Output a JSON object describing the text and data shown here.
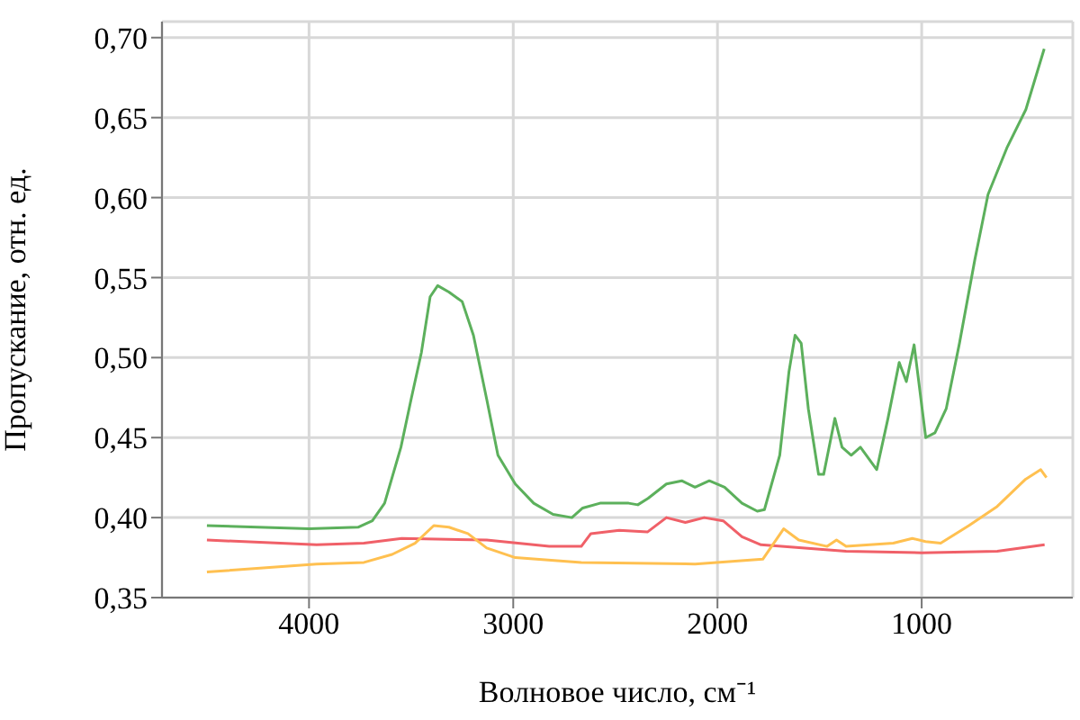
{
  "chart_data": {
    "type": "line",
    "xlabel": "Волновое число, см⁻¹",
    "ylabel": "Пропускание, отн. ед.",
    "xlim": [
      4720,
      260
    ],
    "ylim": [
      0.35,
      0.71
    ],
    "xticks": [
      4000,
      3000,
      2000,
      1000
    ],
    "yticks": [
      {
        "value": 0.35,
        "label": "0,35"
      },
      {
        "value": 0.4,
        "label": "0,40"
      },
      {
        "value": 0.45,
        "label": "0,45"
      },
      {
        "value": 0.5,
        "label": "0,50"
      },
      {
        "value": 0.55,
        "label": "0,55"
      },
      {
        "value": 0.6,
        "label": "0,60"
      },
      {
        "value": 0.65,
        "label": "0,65"
      },
      {
        "value": 0.7,
        "label": "0,70"
      }
    ],
    "grid": true,
    "marker": "none",
    "line_style": "solid",
    "series": [
      {
        "color": "#5cb05c",
        "x": [
          4500,
          4000,
          3760,
          3690,
          3630,
          3550,
          3500,
          3450,
          3407,
          3370,
          3315,
          3250,
          3195,
          3130,
          3075,
          2990,
          2900,
          2805,
          2713,
          2660,
          2575,
          2435,
          2390,
          2340,
          2250,
          2175,
          2110,
          2040,
          1965,
          1880,
          1805,
          1770,
          1695,
          1650,
          1620,
          1590,
          1555,
          1505,
          1480,
          1425,
          1390,
          1345,
          1300,
          1220,
          1165,
          1110,
          1075,
          1037,
          980,
          935,
          880,
          815,
          740,
          675,
          583,
          490,
          400
        ],
        "values": [
          0.395,
          0.393,
          0.394,
          0.398,
          0.409,
          0.444,
          0.474,
          0.503,
          0.538,
          0.545,
          0.541,
          0.535,
          0.514,
          0.474,
          0.439,
          0.421,
          0.409,
          0.402,
          0.4,
          0.406,
          0.409,
          0.409,
          0.408,
          0.412,
          0.421,
          0.423,
          0.419,
          0.423,
          0.419,
          0.409,
          0.404,
          0.405,
          0.439,
          0.491,
          0.514,
          0.509,
          0.468,
          0.427,
          0.427,
          0.462,
          0.444,
          0.439,
          0.444,
          0.43,
          0.462,
          0.497,
          0.485,
          0.508,
          0.45,
          0.453,
          0.468,
          0.509,
          0.561,
          0.602,
          0.631,
          0.655,
          0.693
        ]
      },
      {
        "color": "#f06068",
        "x": [
          4500,
          3963,
          3731,
          3546,
          3130,
          2824,
          2667,
          2620,
          2481,
          2343,
          2250,
          2157,
          2065,
          1972,
          1880,
          1787,
          1370,
          1000,
          630,
          398
        ],
        "values": [
          0.386,
          0.383,
          0.384,
          0.387,
          0.386,
          0.382,
          0.382,
          0.39,
          0.392,
          0.391,
          0.4,
          0.397,
          0.4,
          0.398,
          0.388,
          0.383,
          0.379,
          0.378,
          0.379,
          0.383
        ]
      },
      {
        "color": "#ffc050",
        "x": [
          4500,
          3963,
          3731,
          3593,
          3481,
          3389,
          3315,
          3222,
          3130,
          2990,
          2667,
          2110,
          1778,
          1676,
          1602,
          1463,
          1417,
          1370,
          1139,
          1046,
          981,
          907,
          769,
          630,
          491,
          417,
          389
        ],
        "values": [
          0.366,
          0.371,
          0.372,
          0.377,
          0.384,
          0.395,
          0.394,
          0.39,
          0.381,
          0.375,
          0.372,
          0.371,
          0.374,
          0.393,
          0.386,
          0.382,
          0.386,
          0.382,
          0.384,
          0.387,
          0.385,
          0.384,
          0.395,
          0.407,
          0.424,
          0.43,
          0.425
        ]
      }
    ]
  }
}
